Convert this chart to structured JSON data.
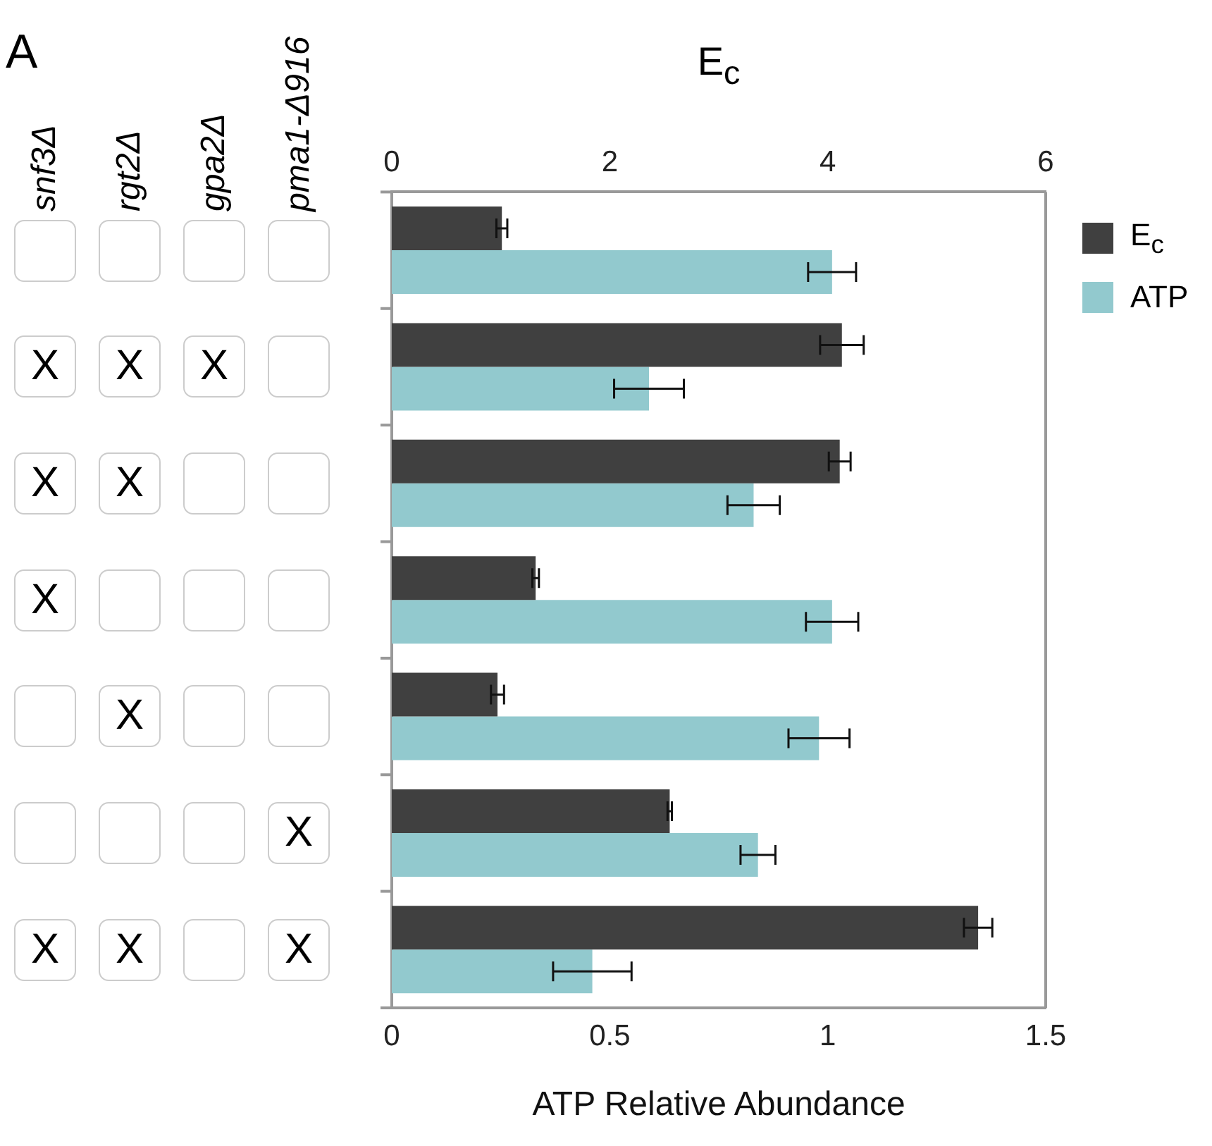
{
  "chart_data": [
    {
      "type": "other",
      "annotations": [
        "A",
        "snf3Δ",
        "rgt2Δ",
        "gpa2Δ",
        "pma1-Δ916",
        "X",
        "X",
        "X",
        "X",
        "X",
        "X",
        "X",
        "X",
        "X",
        "X",
        "X"
      ]
    },
    {
      "type": "bar",
      "orientation": "horizontal",
      "categories": [
        null,
        null,
        null,
        null,
        null,
        null,
        null
      ],
      "series": [
        {
          "name": "E$_{c}$",
          "color": "#404040",
          "axis": "x2",
          "values": [
            1.01,
            4.13,
            4.11,
            1.32,
            0.97,
            2.55,
            5.38
          ],
          "errors": [
            0.05,
            0.2,
            0.1,
            0.03,
            0.06,
            0.02,
            0.13
          ]
        },
        {
          "name": "ATP",
          "color": "#92c9ce",
          "values": [
            1.01,
            0.59,
            0.83,
            1.01,
            0.98,
            0.84,
            0.46
          ],
          "errors": [
            0.055,
            0.08,
            0.06,
            0.06,
            0.07,
            0.04,
            0.09
          ]
        }
      ],
      "xlabel": "ATP Relative Abundance",
      "xlim": [
        0,
        1.5
      ],
      "xticks": [
        0,
        0.5,
        1,
        1.5
      ],
      "x2label": "E$_{c}$",
      "x2lim": [
        0,
        6
      ],
      "x2ticks": [
        0,
        2,
        4,
        6
      ],
      "grid": false,
      "legend": "top right"
    }
  ]
}
